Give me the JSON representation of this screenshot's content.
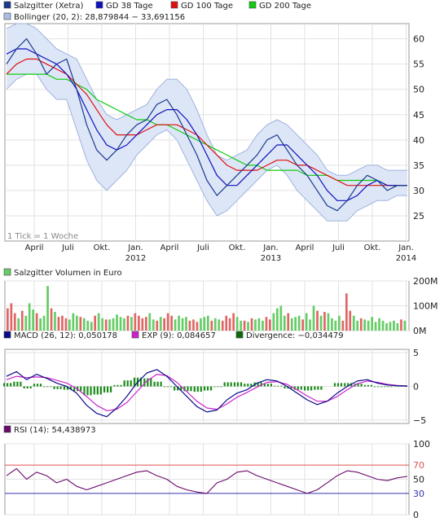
{
  "chart_data": [
    {
      "type": "line",
      "legend": [
        {
          "label": "Salzgitter (Xetra)",
          "color": "#1a3a8f"
        },
        {
          "label": "GD 38 Tage",
          "color": "#1010c0"
        },
        {
          "label": "GD 100 Tage",
          "color": "#e01010"
        },
        {
          "label": "GD 200 Tage",
          "color": "#10cc10"
        },
        {
          "label": "Bollinger (20, 2): 28,879844 − 33,691156",
          "color": "#a9bde6"
        }
      ],
      "ylim": [
        20,
        63
      ],
      "yticks": [
        25,
        30,
        35,
        40,
        45,
        50,
        55,
        60
      ],
      "x_axis_months": [
        "April",
        "Juli",
        "Okt.",
        "Jan.",
        "April",
        "Juli",
        "Okt.",
        "Jan.",
        "April",
        "Juli",
        "Okt.",
        "Jan."
      ],
      "x_axis_years": [
        {
          "label": "2012",
          "under": 3
        },
        {
          "label": "2013",
          "under": 7
        },
        {
          "label": "2014",
          "under": 11
        }
      ],
      "annotation": "1 Tick = 1 Woche",
      "x": [
        0,
        1,
        2,
        3,
        4,
        5,
        6,
        7,
        8,
        9,
        10,
        11,
        12,
        13,
        14,
        15,
        16,
        17,
        18,
        19,
        20,
        21,
        22,
        23,
        24,
        25,
        26,
        27,
        28,
        29,
        30,
        31,
        32,
        33,
        34,
        35,
        36,
        37,
        38,
        39,
        40
      ],
      "series": [
        {
          "name": "Salzgitter (Xetra)",
          "color": "#1a3a8f",
          "values": [
            55,
            58,
            60,
            57,
            53,
            55,
            56,
            50,
            43,
            38,
            36,
            38,
            41,
            43,
            44,
            47,
            48,
            45,
            41,
            37,
            32,
            29,
            31,
            33,
            35,
            37,
            40,
            41,
            38,
            35,
            33,
            30,
            27,
            26,
            28,
            31,
            33,
            32,
            30,
            31,
            31
          ]
        },
        {
          "name": "GD 38 Tage",
          "color": "#1010c0",
          "values": [
            57,
            58,
            58,
            57,
            56,
            55,
            53,
            50,
            46,
            42,
            39,
            38,
            39,
            41,
            43,
            45,
            46,
            46,
            44,
            41,
            37,
            33,
            31,
            31,
            33,
            35,
            37,
            39,
            39,
            37,
            35,
            33,
            30,
            28,
            28,
            29,
            31,
            32,
            31,
            31,
            31
          ]
        },
        {
          "name": "GD 100 Tage",
          "color": "#e01010",
          "values": [
            53,
            55,
            56,
            56,
            55,
            54,
            53,
            51,
            49,
            46,
            43,
            41,
            41,
            41,
            42,
            43,
            43,
            43,
            42,
            41,
            39,
            37,
            35,
            34,
            34,
            34,
            35,
            36,
            36,
            35,
            35,
            34,
            33,
            32,
            31,
            31,
            31,
            31,
            31,
            31,
            31
          ]
        },
        {
          "name": "GD 200 Tage",
          "color": "#10cc10",
          "values": [
            53,
            53,
            53,
            53,
            53,
            52,
            52,
            51,
            50,
            48,
            47,
            46,
            45,
            44,
            44,
            43,
            43,
            42,
            41,
            40,
            39,
            38,
            37,
            36,
            35,
            35,
            34,
            34,
            34,
            34,
            33,
            33,
            33,
            32,
            32,
            32,
            32,
            32,
            31,
            31,
            31
          ]
        },
        {
          "name": "Bollinger upper",
          "color": "#a9bde6",
          "values": [
            62,
            63,
            63,
            62,
            60,
            58,
            57,
            56,
            52,
            48,
            45,
            44,
            45,
            46,
            47,
            50,
            52,
            52,
            50,
            46,
            41,
            37,
            36,
            37,
            38,
            41,
            43,
            44,
            43,
            41,
            39,
            37,
            34,
            33,
            33,
            34,
            35,
            35,
            34,
            34,
            34
          ]
        },
        {
          "name": "Bollinger lower",
          "color": "#a9bde6",
          "values": [
            50,
            52,
            53,
            53,
            50,
            48,
            48,
            42,
            36,
            32,
            30,
            32,
            34,
            37,
            39,
            41,
            42,
            40,
            36,
            32,
            28,
            25,
            26,
            28,
            30,
            32,
            34,
            35,
            33,
            30,
            28,
            26,
            24,
            24,
            24,
            26,
            27,
            28,
            28,
            29,
            29
          ]
        }
      ]
    },
    {
      "type": "bar",
      "title": "Salzgitter Volumen in Euro",
      "ylim": [
        0,
        200
      ],
      "ytick_labels": [
        "0M",
        "100M",
        "200M"
      ],
      "yticks": [
        0,
        100,
        200
      ],
      "values": [
        90,
        110,
        70,
        50,
        80,
        60,
        110,
        85,
        70,
        50,
        60,
        180,
        90,
        75,
        55,
        60,
        50,
        45,
        70,
        60,
        55,
        50,
        40,
        35,
        60,
        70,
        50,
        45,
        45,
        50,
        65,
        55,
        50,
        60,
        55,
        70,
        60,
        50,
        55,
        70,
        45,
        40,
        55,
        50,
        70,
        60,
        45,
        60,
        50,
        55,
        40,
        45,
        35,
        50,
        55,
        60,
        40,
        50,
        45,
        40,
        60,
        50,
        70,
        55,
        40,
        40,
        35,
        50,
        45,
        50,
        40,
        55,
        45,
        70,
        90,
        100,
        60,
        70,
        50,
        55,
        60,
        45,
        70,
        45,
        100,
        80,
        60,
        75,
        70,
        50,
        40,
        60,
        40,
        150,
        80,
        60,
        40,
        50,
        45,
        40,
        55,
        35,
        50,
        40,
        30,
        35,
        40,
        30,
        45,
        40
      ],
      "bar_colors": {
        "up": "#66cc66",
        "down": "#e06666"
      }
    },
    {
      "type": "line",
      "legend": [
        {
          "label": "MACD (26, 12): 0,050178",
          "color": "#0a0a8a"
        },
        {
          "label": "EXP (9): 0,084657",
          "color": "#cc22cc"
        },
        {
          "label": "Divergence: −0,034479",
          "color": "#0a6a0a"
        }
      ],
      "ylim": [
        -5.5,
        5.5
      ],
      "yticks": [
        -5,
        0,
        5
      ],
      "ytick_labels": [
        "−5",
        "0",
        "5"
      ],
      "x": [
        0,
        1,
        2,
        3,
        4,
        5,
        6,
        7,
        8,
        9,
        10,
        11,
        12,
        13,
        14,
        15,
        16,
        17,
        18,
        19,
        20,
        21,
        22,
        23,
        24,
        25,
        26,
        27,
        28,
        29,
        30,
        31,
        32,
        33,
        34,
        35,
        36,
        37,
        38,
        39,
        40
      ],
      "series": [
        {
          "name": "MACD",
          "color": "#0a0a8a",
          "values": [
            1.5,
            2.2,
            1.0,
            1.8,
            1.2,
            0.5,
            0.0,
            -1.0,
            -2.8,
            -4.0,
            -4.5,
            -3.2,
            -1.5,
            0.5,
            2.0,
            2.5,
            1.5,
            0.0,
            -1.5,
            -3.0,
            -3.8,
            -3.5,
            -2.0,
            -1.0,
            -0.5,
            0.5,
            1.0,
            0.8,
            0.0,
            -1.0,
            -2.0,
            -2.7,
            -2.2,
            -1.0,
            0.0,
            0.8,
            1.0,
            0.5,
            0.2,
            0.1,
            0.05
          ]
        },
        {
          "name": "EXP",
          "color": "#cc22cc",
          "values": [
            1.0,
            1.5,
            1.3,
            1.4,
            1.3,
            0.9,
            0.5,
            -0.3,
            -1.5,
            -2.8,
            -3.6,
            -3.4,
            -2.4,
            -0.8,
            0.8,
            1.8,
            1.6,
            0.6,
            -0.8,
            -2.2,
            -3.2,
            -3.4,
            -2.6,
            -1.6,
            -0.9,
            -0.1,
            0.6,
            0.7,
            0.3,
            -0.5,
            -1.4,
            -2.2,
            -2.2,
            -1.5,
            -0.5,
            0.4,
            0.8,
            0.6,
            0.3,
            0.15,
            0.08
          ]
        },
        {
          "name": "Divergence",
          "color": "#0a6a0a",
          "type": "bar",
          "values": [
            0.5,
            0.7,
            -0.3,
            0.4,
            -0.1,
            -0.4,
            -0.5,
            -0.7,
            -1.3,
            -1.2,
            -0.9,
            0.2,
            0.9,
            1.3,
            1.2,
            0.7,
            -0.1,
            -0.6,
            -0.7,
            -0.8,
            -0.6,
            -0.1,
            0.6,
            0.6,
            0.4,
            0.6,
            0.4,
            0.1,
            -0.3,
            -0.5,
            -0.6,
            -0.5,
            0.0,
            0.5,
            0.5,
            0.4,
            0.2,
            -0.1,
            -0.1,
            -0.05,
            -0.03
          ]
        }
      ]
    },
    {
      "type": "line",
      "legend": [
        {
          "label": "RSI (14): 54,438973",
          "color": "#6a0a6a"
        }
      ],
      "ylim": [
        0,
        100
      ],
      "yticks": [
        0,
        30,
        50,
        70,
        100
      ],
      "reference_lines": [
        {
          "value": 70,
          "color": "#e05050",
          "label": "70"
        },
        {
          "value": 30,
          "color": "#3333aa",
          "label": "30"
        }
      ],
      "x": [
        0,
        1,
        2,
        3,
        4,
        5,
        6,
        7,
        8,
        9,
        10,
        11,
        12,
        13,
        14,
        15,
        16,
        17,
        18,
        19,
        20,
        21,
        22,
        23,
        24,
        25,
        26,
        27,
        28,
        29,
        30,
        31,
        32,
        33,
        34,
        35,
        36,
        37,
        38,
        39,
        40
      ],
      "series": [
        {
          "name": "RSI",
          "color": "#6a0a6a",
          "values": [
            55,
            65,
            50,
            60,
            55,
            45,
            50,
            40,
            35,
            40,
            45,
            50,
            55,
            60,
            62,
            55,
            50,
            40,
            35,
            32,
            30,
            45,
            50,
            60,
            62,
            55,
            50,
            45,
            40,
            35,
            30,
            35,
            45,
            55,
            62,
            60,
            55,
            50,
            48,
            52,
            54
          ]
        }
      ]
    }
  ]
}
